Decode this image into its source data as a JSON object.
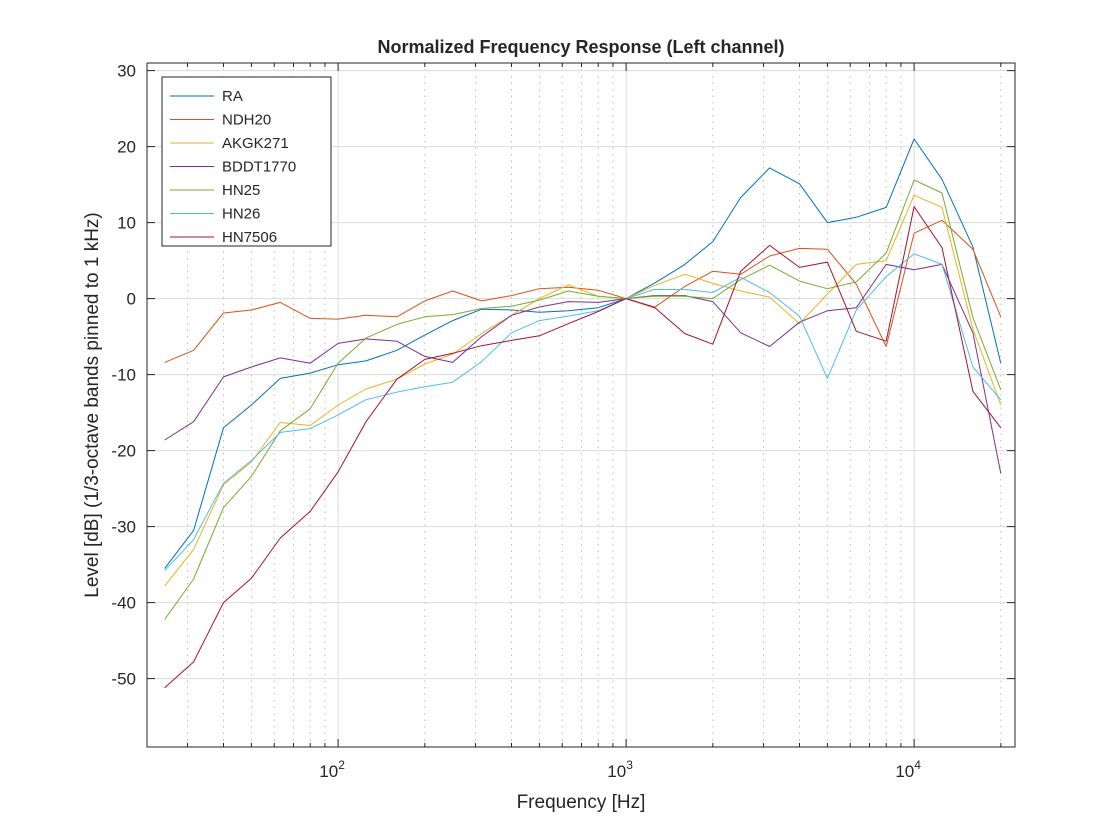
{
  "chart_data": {
    "type": "line",
    "title": "Normalized Frequency Response (Left channel)",
    "xlabel": "Frequency [Hz]",
    "ylabel": "Level [dB] (1/3-octave bands pinned to 1 kHz)",
    "xscale": "log",
    "xlim": [
      21.7,
      22400
    ],
    "ylim": [
      -59,
      31
    ],
    "grid": true,
    "legend_position": "top-left",
    "xticks": [
      {
        "value": 100,
        "base": "10",
        "exp": "2"
      },
      {
        "value": 1000,
        "base": "10",
        "exp": "3"
      },
      {
        "value": 10000,
        "base": "10",
        "exp": "4"
      }
    ],
    "yticks": [
      30,
      20,
      10,
      0,
      -10,
      -20,
      -30,
      -40,
      -50
    ],
    "ytick_labels": [
      "30",
      "20",
      "10",
      "0",
      "-10",
      "-20",
      "-30",
      "-40",
      "-50"
    ],
    "x": [
      25,
      31.5,
      40,
      50,
      63,
      80,
      100,
      125,
      160,
      200,
      250,
      315,
      400,
      500,
      630,
      800,
      1000,
      1250,
      1600,
      2000,
      2500,
      3150,
      4000,
      5000,
      6300,
      8000,
      10000,
      12500,
      16000,
      20000
    ],
    "series": [
      {
        "name": "RA",
        "color": "#0072BD",
        "values": [
          -35.5,
          -30.5,
          -17,
          -14,
          -10.5,
          -9.8,
          -8.7,
          -8.2,
          -6.8,
          -4.8,
          -2.9,
          -1.4,
          -1.5,
          -1.8,
          -1.6,
          -1.2,
          0,
          2,
          4.5,
          7.5,
          13.3,
          17.2,
          15.1,
          10,
          10.7,
          12,
          21,
          15.7,
          6.8,
          -8.5
        ]
      },
      {
        "name": "NDH20",
        "color": "#D95319",
        "values": [
          -8.4,
          -6.8,
          -1.9,
          -1.5,
          -0.5,
          -2.6,
          -2.7,
          -2.2,
          -2.4,
          -0.3,
          1,
          -0.3,
          0.4,
          1.3,
          1.5,
          1.1,
          0,
          -1.2,
          1.6,
          3.6,
          3.2,
          5.6,
          6.6,
          6.5,
          1.9,
          -6.3,
          8.6,
          10.3,
          6.5,
          -2.4
        ]
      },
      {
        "name": "AKGK271",
        "color": "#EDB120",
        "values": [
          -37.8,
          -33,
          -24.5,
          -21.5,
          -16.3,
          -16.7,
          -14,
          -11.9,
          -10.6,
          -8.6,
          -7.3,
          -4.6,
          -2.2,
          0,
          1.8,
          0.3,
          0,
          1.7,
          3.2,
          2,
          1,
          0.2,
          -3.3,
          0.6,
          4.5,
          5,
          13.6,
          12,
          -4,
          -14
        ]
      },
      {
        "name": "BDDT1770",
        "color": "#7E2F8E",
        "values": [
          -18.6,
          -16.2,
          -10.3,
          -9,
          -7.8,
          -8.5,
          -5.9,
          -5.3,
          -5.6,
          -7.6,
          -8.4,
          -5,
          -2.2,
          -1.1,
          -0.4,
          -0.5,
          0,
          0.4,
          0.4,
          -0.4,
          -4.5,
          -6.3,
          -3.1,
          -1.6,
          -1.2,
          4.5,
          3.8,
          4.5,
          -4.5,
          -23
        ]
      },
      {
        "name": "HN25",
        "color": "#77AC30",
        "values": [
          -42.2,
          -36.9,
          -27.5,
          -23.4,
          -17.4,
          -14.5,
          -8.5,
          -5.2,
          -3.4,
          -2.4,
          -2.1,
          -1.3,
          -1,
          -0.2,
          1,
          0.3,
          0,
          0.3,
          0.3,
          0,
          2.5,
          4.4,
          2.3,
          1.3,
          2.2,
          6,
          15.6,
          13.9,
          -2.5,
          -12
        ]
      },
      {
        "name": "HN26",
        "color": "#4DBEEE",
        "values": [
          -35.8,
          -31.7,
          -24.3,
          -21.3,
          -17.6,
          -17.1,
          -15.3,
          -13.3,
          -12.3,
          -11.6,
          -11,
          -8.3,
          -4.5,
          -2.9,
          -2.3,
          -1.6,
          0,
          1.2,
          1.2,
          0.8,
          2.8,
          0.8,
          -2.3,
          -10.5,
          -1.5,
          2.9,
          5.9,
          4.5,
          -9,
          -13.3
        ]
      },
      {
        "name": "HN7506",
        "color": "#A2142F",
        "values": [
          -51.2,
          -47.8,
          -40,
          -36.8,
          -31.5,
          -28,
          -22.8,
          -16.2,
          -10.6,
          -8,
          -7.2,
          -6.2,
          -5.5,
          -4.9,
          -3.3,
          -1.7,
          0,
          -1.1,
          -4.6,
          -6,
          3.6,
          7,
          4.1,
          4.8,
          -4.3,
          -5.6,
          12.1,
          6.7,
          -12.2,
          -17
        ]
      }
    ]
  }
}
